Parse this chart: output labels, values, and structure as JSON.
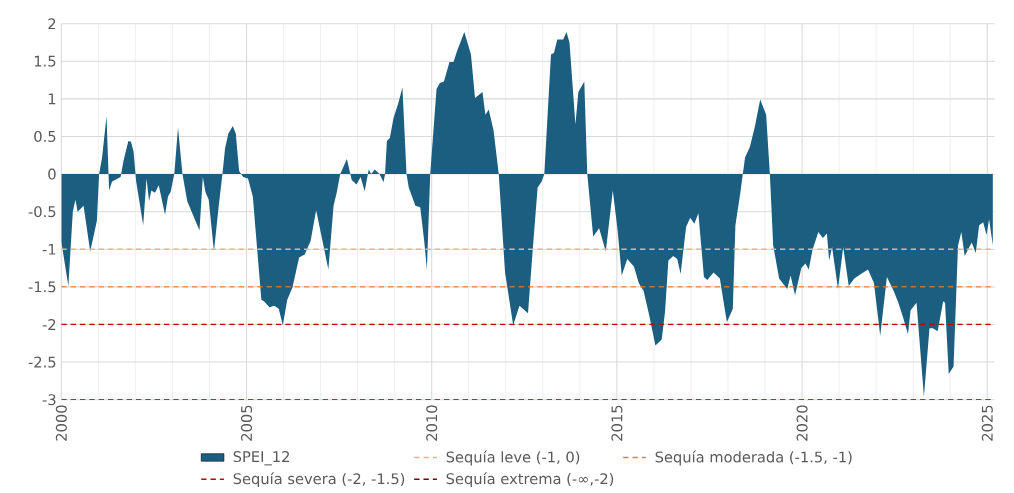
{
  "chart_data": {
    "type": "area",
    "xlim": [
      2000,
      2025.2
    ],
    "xticks": [
      2000,
      2005,
      2010,
      2015,
      2020,
      2025
    ],
    "ylim": [
      -3,
      2
    ],
    "yticks": [
      -3,
      -2.5,
      -2,
      -1.5,
      -1,
      -0.5,
      0,
      0.5,
      1,
      1.5,
      2
    ],
    "grid": true,
    "legend": "bottom",
    "series": [
      {
        "name": "SPEI_12",
        "color": "#1b5e80",
        "x": [
          2000.0,
          2000.19,
          2000.31,
          2000.38,
          2000.44,
          2000.6,
          2000.78,
          2000.96,
          2001.02,
          2001.1,
          2001.22,
          2001.29,
          2001.37,
          2001.6,
          2001.68,
          2001.81,
          2001.88,
          2001.95,
          2002.02,
          2002.1,
          2002.21,
          2002.3,
          2002.37,
          2002.43,
          2002.53,
          2002.63,
          2002.8,
          2002.88,
          2002.95,
          2003.05,
          2003.15,
          2003.27,
          2003.4,
          2003.73,
          2003.82,
          2003.89,
          2003.98,
          2004.12,
          2004.25,
          2004.35,
          2004.42,
          2004.51,
          2004.63,
          2004.71,
          2004.8,
          2004.91,
          2005.04,
          2005.17,
          2005.4,
          2005.47,
          2005.62,
          2005.75,
          2005.87,
          2005.98,
          2006.1,
          2006.24,
          2006.42,
          2006.57,
          2006.73,
          2006.88,
          2007.21,
          2007.35,
          2007.43,
          2007.53,
          2007.71,
          2007.84,
          2007.97,
          2008.08,
          2008.19,
          2008.3,
          2008.37,
          2008.46,
          2008.59,
          2008.7,
          2008.74,
          2008.79,
          2008.87,
          2008.97,
          2009.09,
          2009.21,
          2009.32,
          2009.38,
          2009.56,
          2009.69,
          2009.8,
          2009.87,
          2009.96,
          2010.13,
          2010.22,
          2010.33,
          2010.48,
          2010.59,
          2010.68,
          2010.88,
          2011.06,
          2011.17,
          2011.37,
          2011.45,
          2011.54,
          2011.67,
          2011.81,
          2011.98,
          2012.2,
          2012.37,
          2012.6,
          2012.73,
          2012.86,
          2012.97,
          2013.04,
          2013.22,
          2013.3,
          2013.39,
          2013.55,
          2013.64,
          2013.72,
          2013.88,
          2013.96,
          2014.12,
          2014.2,
          2014.36,
          2014.52,
          2014.7,
          2014.89,
          2015.02,
          2015.13,
          2015.28,
          2015.46,
          2015.59,
          2015.72,
          2015.86,
          2016.04,
          2016.21,
          2016.3,
          2016.39,
          2016.52,
          2016.63,
          2016.72,
          2016.87,
          2016.98,
          2017.09,
          2017.2,
          2017.35,
          2017.44,
          2017.61,
          2017.78,
          2017.97,
          2018.13,
          2018.2,
          2018.33,
          2018.4,
          2018.46,
          2018.59,
          2018.72,
          2018.87,
          2019.03,
          2019.13,
          2019.22,
          2019.38,
          2019.6,
          2019.69,
          2019.81,
          2019.98,
          2020.09,
          2020.18,
          2020.28,
          2020.44,
          2020.56,
          2020.67,
          2020.73,
          2020.81,
          2020.97,
          2021.11,
          2021.26,
          2021.41,
          2021.59,
          2021.78,
          2021.94,
          2022.11,
          2022.29,
          2022.47,
          2022.6,
          2022.73,
          2022.86,
          2022.93,
          2023.09,
          2023.29,
          2023.44,
          2023.53,
          2023.66,
          2023.81,
          2023.86,
          2023.96,
          2024.09,
          2024.21,
          2024.3,
          2024.39,
          2024.58,
          2024.69,
          2024.78,
          2024.89,
          2024.98,
          2025.05,
          2025.15
        ],
        "values": [
          -0.9,
          -1.49,
          -0.5,
          -0.34,
          -0.5,
          -0.42,
          -1.03,
          -0.62,
          0,
          0.22,
          0.77,
          -0.22,
          -0.1,
          -0.04,
          0.18,
          0.44,
          0.43,
          0.3,
          -0.1,
          -0.34,
          -0.68,
          -0.06,
          -0.36,
          -0.22,
          -0.25,
          -0.15,
          -0.54,
          -0.3,
          -0.24,
          0,
          0.62,
          0,
          -0.36,
          -0.75,
          -0.04,
          -0.24,
          -0.34,
          -1.03,
          -0.42,
          0,
          0.34,
          0.54,
          0.64,
          0.54,
          0.04,
          -0.04,
          -0.06,
          -0.3,
          -1.67,
          -1.69,
          -1.77,
          -1.75,
          -1.79,
          -2.01,
          -1.67,
          -1.51,
          -1.11,
          -1.07,
          -0.89,
          -0.48,
          -1.27,
          -0.42,
          -0.26,
          0,
          0.2,
          -0.08,
          -0.14,
          -0.04,
          -0.23,
          0.06,
          0,
          0.06,
          0,
          -0.11,
          0,
          0.44,
          0.48,
          0.75,
          0.93,
          1.15,
          0,
          -0.18,
          -0.42,
          -0.44,
          -0.9,
          -1.27,
          0,
          1.13,
          1.21,
          1.23,
          1.49,
          1.49,
          1.63,
          1.89,
          1.59,
          1.01,
          1.09,
          0.79,
          0.86,
          0.58,
          0,
          -1.31,
          -2.01,
          -1.75,
          -1.85,
          -0.99,
          -0.18,
          -0.1,
          0,
          1.59,
          1.61,
          1.79,
          1.79,
          1.89,
          1.75,
          0.66,
          1.09,
          1.23,
          0,
          -0.83,
          -0.72,
          -1.03,
          -0.22,
          -0.75,
          -1.35,
          -1.13,
          -1.23,
          -1.45,
          -1.55,
          -1.85,
          -2.28,
          -2.2,
          -1.83,
          -1.15,
          -1.09,
          -1.13,
          -1.33,
          -0.7,
          -0.58,
          -0.66,
          -0.52,
          -1.37,
          -1.41,
          -1.31,
          -1.39,
          -1.97,
          -1.79,
          -0.68,
          -0.26,
          0,
          0.22,
          0.36,
          0.62,
          0.99,
          0.79,
          0,
          -0.95,
          -1.39,
          -1.53,
          -1.35,
          -1.61,
          -1.25,
          -1.19,
          -1.27,
          -1.01,
          -0.77,
          -0.85,
          -0.79,
          -1.15,
          -0.97,
          -1.53,
          -0.97,
          -1.49,
          -1.39,
          -1.33,
          -1.27,
          -1.45,
          -2.15,
          -1.37,
          -1.55,
          -1.71,
          -1.91,
          -2.13,
          -1.81,
          -1.71,
          -2.96,
          -2.05,
          -2.05,
          -2.09,
          -1.69,
          -1.71,
          -2.66,
          -2.56,
          -0.95,
          -0.77,
          -1.09,
          -0.91,
          -1.05,
          -0.68,
          -0.64,
          -0.81,
          -0.6,
          -0.95
        ]
      }
    ],
    "ref_lines": [
      {
        "axis": "y",
        "value": -1,
        "label": "Sequía leve (-1, 0)",
        "color": "#f4b183",
        "line_style": "dashed"
      },
      {
        "axis": "y",
        "value": -1.5,
        "label": "Sequía moderada  (-1.5, -1)",
        "color": "#ed7d31",
        "line_style": "dashed"
      },
      {
        "axis": "y",
        "value": -2,
        "label": "Sequía severa  (-2, -1.5)",
        "color": "#c00000",
        "line_style": "dashed"
      },
      {
        "axis": "y",
        "value": -3,
        "label": "Sequía extrema (-∞,-2)",
        "color": "#7f0000",
        "line_style": "dashed"
      }
    ]
  }
}
